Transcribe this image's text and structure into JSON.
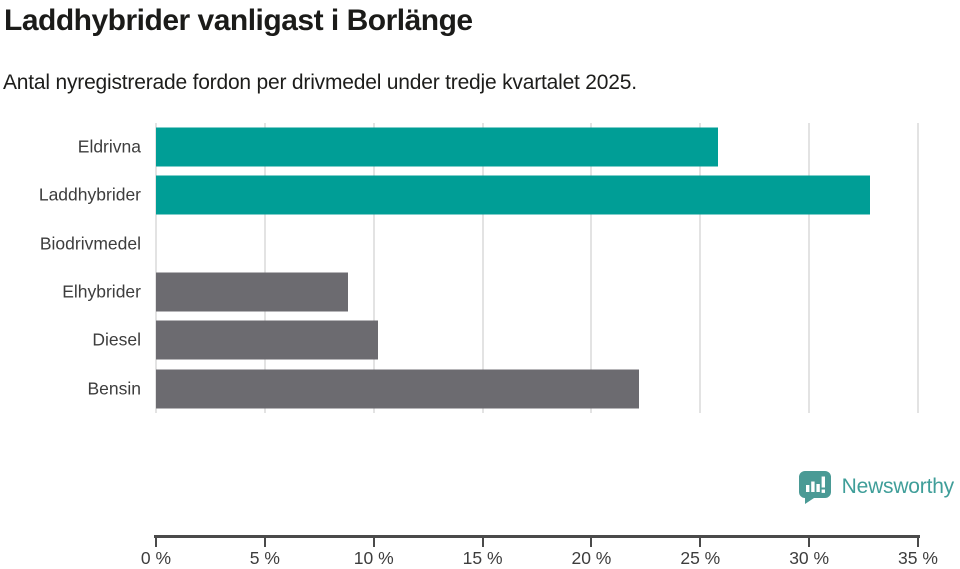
{
  "header": {
    "title": "Laddhybrider vanligast i Borlänge",
    "subtitle": "Antal nyregistrerade fordon per drivmedel under tredje kvartalet 2025."
  },
  "chart_data": {
    "type": "bar",
    "orientation": "horizontal",
    "title": "Laddhybrider vanligast i Borlänge",
    "subtitle": "Antal nyregistrerade fordon per drivmedel under tredje kvartalet 2025.",
    "categories": [
      "Eldrivna",
      "Laddhybrider",
      "Biodrivmedel",
      "Elhybrider",
      "Diesel",
      "Bensin"
    ],
    "values": [
      25.8,
      32.8,
      0,
      8.8,
      10.2,
      22.2
    ],
    "unit": "%",
    "bar_colors": [
      "#009e96",
      "#009e96",
      "#6c6b70",
      "#6c6b70",
      "#6c6b70",
      "#6c6b70"
    ],
    "highlight_color": "#009e96",
    "default_color": "#6c6b70",
    "xlim": [
      0,
      35
    ],
    "x_tick_values": [
      0,
      5,
      10,
      15,
      20,
      25,
      30,
      35
    ],
    "x_tick_labels": [
      "0 %",
      "5 %",
      "10 %",
      "15 %",
      "20 %",
      "25 %",
      "30 %",
      "35 %"
    ],
    "xlabel": "",
    "ylabel": "",
    "grid": true,
    "legend": false,
    "gridline_color": "#e3e3e3",
    "axis_color": "#4a4a4a",
    "label_color": "#3d3d3d"
  },
  "footer": {
    "brand": "Newsworthy",
    "brand_color": "#3f9e99",
    "logo_icon": "speech-bubble-bar-chart",
    "logo_color": "#4a9a95"
  }
}
